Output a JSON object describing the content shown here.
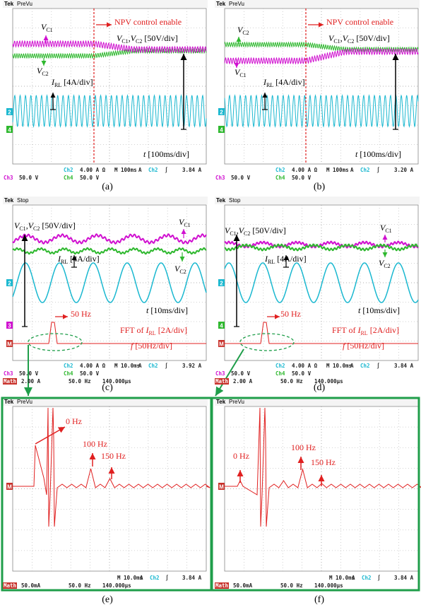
{
  "panels": [
    {
      "caption": "(a)",
      "header": {
        "brand": "Tek",
        "mode": "PreVu"
      },
      "labels": [
        {
          "color": "#e02020",
          "parts": [
            {
              "text": "NPV control enable"
            }
          ]
        },
        {
          "parts": [
            {
              "text": "V",
              "italic": true
            },
            {
              "text": "C1",
              "sub": true
            }
          ]
        },
        {
          "parts": [
            {
              "text": "V",
              "italic": true
            },
            {
              "text": "C2",
              "sub": true
            }
          ]
        },
        {
          "parts": [
            {
              "text": "V",
              "italic": true
            },
            {
              "text": "C1",
              "sub": true
            },
            {
              "text": ","
            },
            {
              "text": "V",
              "italic": true
            },
            {
              "text": "C2",
              "sub": true
            },
            {
              "text": " [50V/div]"
            }
          ]
        },
        {
          "parts": [
            {
              "text": "I",
              "italic": true
            },
            {
              "text": "RL",
              "sub": true
            },
            {
              "text": " [4A/div]"
            }
          ]
        },
        {
          "parts": [
            {
              "text": "t",
              "italic": true
            },
            {
              "text": " [100ms/div]"
            }
          ]
        }
      ],
      "markers": [
        {
          "text": "2",
          "color": "#1ab8d0"
        },
        {
          "text": "4",
          "color": "#2eb82e"
        }
      ],
      "status": [
        [
          {
            "text": "Ch2",
            "color": "#1ab8d0"
          },
          "4.00 A Ω",
          "M 100ms",
          "A",
          {
            "text": "Ch2",
            "color": "#1ab8d0"
          },
          "∫",
          "3.84 A"
        ],
        [
          {
            "text": "Ch3",
            "color": "#d010d0"
          },
          "50.0 V",
          {
            "text": "Ch4",
            "color": "#2eb82e"
          },
          "50.0 V"
        ]
      ]
    },
    {
      "caption": "(b)",
      "header": {
        "brand": "Tek",
        "mode": "PreVu"
      },
      "labels": [
        {
          "color": "#e02020",
          "parts": [
            {
              "text": "NPV control enable"
            }
          ]
        },
        {
          "parts": [
            {
              "text": "V",
              "italic": true
            },
            {
              "text": "C2",
              "sub": true
            }
          ]
        },
        {
          "parts": [
            {
              "text": "V",
              "italic": true
            },
            {
              "text": "C1",
              "sub": true
            }
          ]
        },
        {
          "parts": [
            {
              "text": "V",
              "italic": true
            },
            {
              "text": "C1",
              "sub": true
            },
            {
              "text": ","
            },
            {
              "text": "V",
              "italic": true
            },
            {
              "text": "C2",
              "sub": true
            },
            {
              "text": " [50V/div]"
            }
          ]
        },
        {
          "parts": [
            {
              "text": "I",
              "italic": true
            },
            {
              "text": "RL",
              "sub": true
            },
            {
              "text": " [4A/div]"
            }
          ]
        },
        {
          "parts": [
            {
              "text": "t",
              "italic": true
            },
            {
              "text": " [100ms/div]"
            }
          ]
        }
      ],
      "markers": [
        {
          "text": "2",
          "color": "#1ab8d0"
        },
        {
          "text": "4",
          "color": "#2eb82e"
        }
      ],
      "status": [
        [
          {
            "text": "Ch2",
            "color": "#1ab8d0"
          },
          "4.00 A Ω",
          "M 100ms",
          "A",
          {
            "text": "Ch2",
            "color": "#1ab8d0"
          },
          "∫",
          "3.20 A"
        ],
        [
          {
            "text": "Ch3",
            "color": "#d010d0"
          },
          "50.0 V",
          {
            "text": "Ch4",
            "color": "#2eb82e"
          },
          "50.0 V"
        ]
      ]
    },
    {
      "caption": "(c)",
      "header": {
        "brand": "Tek",
        "mode": "Stop"
      },
      "labels": [
        {
          "parts": [
            {
              "text": "V",
              "italic": true
            },
            {
              "text": "C1",
              "sub": true
            },
            {
              "text": ","
            },
            {
              "text": "V",
              "italic": true
            },
            {
              "text": "C2",
              "sub": true
            },
            {
              "text": " [50V/div]"
            }
          ]
        },
        {
          "parts": [
            {
              "text": "V",
              "italic": true
            },
            {
              "text": "C1",
              "sub": true
            }
          ]
        },
        {
          "parts": [
            {
              "text": "I",
              "italic": true
            },
            {
              "text": "RL",
              "sub": true
            },
            {
              "text": " [4A/div]"
            }
          ]
        },
        {
          "parts": [
            {
              "text": "V",
              "italic": true
            },
            {
              "text": "C2",
              "sub": true
            }
          ]
        },
        {
          "parts": [
            {
              "text": "t",
              "italic": true
            },
            {
              "text": " [10ms/div]"
            }
          ]
        },
        {
          "color": "#e02020",
          "parts": [
            {
              "text": "50 Hz"
            }
          ]
        },
        {
          "color": "#e02020",
          "parts": [
            {
              "text": "FFT of "
            },
            {
              "text": "I",
              "italic": true
            },
            {
              "text": "RL",
              "sub": true
            },
            {
              "text": " [2A/div]"
            }
          ]
        },
        {
          "color": "#e02020",
          "parts": [
            {
              "text": "f",
              "italic": true
            },
            {
              "text": " [50Hz/div]"
            }
          ]
        }
      ],
      "markers": [
        {
          "text": "2",
          "color": "#1ab8d0"
        },
        {
          "text": "3",
          "color": "#d010d0"
        },
        {
          "text": "M",
          "color": "#c8302a"
        }
      ],
      "status": [
        [
          {
            "text": "Ch2",
            "color": "#1ab8d0"
          },
          "4.00 A Ω",
          "M 10.0ms",
          "A",
          {
            "text": "Ch2",
            "color": "#1ab8d0"
          },
          "∫",
          "3.92 A"
        ],
        [
          {
            "text": "Ch3",
            "color": "#d010d0"
          },
          "50.0 V",
          {
            "text": "Ch4",
            "color": "#2eb82e"
          },
          "50.0 V"
        ],
        [
          {
            "text": "Math",
            "color": "#ffffff",
            "background": "#c8302a"
          },
          "2.00 A",
          "50.0 Hz",
          "140.000µs"
        ]
      ]
    },
    {
      "caption": "(d)",
      "header": {
        "brand": "Tek",
        "mode": "Stop"
      },
      "labels": [
        {
          "parts": [
            {
              "text": "V",
              "italic": true
            },
            {
              "text": "C1",
              "sub": true
            },
            {
              "text": ","
            },
            {
              "text": "V",
              "italic": true
            },
            {
              "text": "C2",
              "sub": true
            },
            {
              "text": " [50V/div]"
            }
          ]
        },
        {
          "parts": [
            {
              "text": "V",
              "italic": true
            },
            {
              "text": "C1",
              "sub": true
            }
          ]
        },
        {
          "parts": [
            {
              "text": "I",
              "italic": true
            },
            {
              "text": "RL",
              "sub": true
            },
            {
              "text": " [4A/div]"
            }
          ]
        },
        {
          "parts": [
            {
              "text": "V",
              "italic": true
            },
            {
              "text": "C2",
              "sub": true
            }
          ]
        },
        {
          "parts": [
            {
              "text": "t",
              "italic": true
            },
            {
              "text": " [10ms/div]"
            }
          ]
        },
        {
          "color": "#e02020",
          "parts": [
            {
              "text": "50 Hz"
            }
          ]
        },
        {
          "color": "#e02020",
          "parts": [
            {
              "text": "FFT of "
            },
            {
              "text": "I",
              "italic": true
            },
            {
              "text": "RL",
              "sub": true
            },
            {
              "text": " [2A/div]"
            }
          ]
        },
        {
          "color": "#e02020",
          "parts": [
            {
              "text": "f",
              "italic": true
            },
            {
              "text": " [50Hz/div]"
            }
          ]
        }
      ],
      "markers": [
        {
          "text": "2",
          "color": "#1ab8d0"
        },
        {
          "text": "4",
          "color": "#2eb82e"
        },
        {
          "text": "M",
          "color": "#c8302a"
        }
      ],
      "status": [
        [
          {
            "text": "Ch2",
            "color": "#1ab8d0"
          },
          "4.00 A Ω",
          "M 10.0ms",
          "A",
          {
            "text": "Ch2",
            "color": "#1ab8d0"
          },
          "∫",
          "3.84 A"
        ],
        [
          {
            "text": "Ch3",
            "color": "#d010d0"
          },
          "50.0 V",
          {
            "text": "Ch4",
            "color": "#2eb82e"
          },
          "50.0 V"
        ],
        [
          {
            "text": "Math",
            "color": "#ffffff",
            "background": "#c8302a"
          },
          "2.00 A",
          "50.0 Hz",
          "140.000µs"
        ]
      ]
    },
    {
      "caption": "(e)",
      "header": {
        "brand": "Tek",
        "mode": "PreVu"
      },
      "labels": [
        {
          "color": "#e02020",
          "parts": [
            {
              "text": "0 Hz"
            }
          ]
        },
        {
          "color": "#e02020",
          "parts": [
            {
              "text": "100 Hz"
            }
          ]
        },
        {
          "color": "#e02020",
          "parts": [
            {
              "text": "150 Hz"
            }
          ]
        }
      ],
      "markers": [
        {
          "text": "M",
          "color": "#c8302a"
        }
      ],
      "status": [
        [
          "M 10.0ms",
          "A",
          {
            "text": "Ch2",
            "color": "#1ab8d0"
          },
          "∫",
          "3.84 A"
        ],
        [
          {
            "text": "Math",
            "color": "#ffffff",
            "background": "#c8302a"
          },
          "50.0mA",
          "50.0 Hz",
          "140.000µs"
        ]
      ]
    },
    {
      "caption": "(f)",
      "header": {
        "brand": "Tek",
        "mode": "PreVu"
      },
      "labels": [
        {
          "color": "#e02020",
          "parts": [
            {
              "text": "0 Hz"
            }
          ]
        },
        {
          "color": "#e02020",
          "parts": [
            {
              "text": "100 Hz"
            }
          ]
        },
        {
          "color": "#e02020",
          "parts": [
            {
              "text": "150 Hz"
            }
          ]
        }
      ],
      "markers": [
        {
          "text": "M",
          "color": "#c8302a"
        }
      ],
      "status": [
        [
          "M 10.0ms",
          "A",
          {
            "text": "Ch2",
            "color": "#1ab8d0"
          },
          "∫",
          "3.84 A"
        ],
        [
          {
            "text": "Math",
            "color": "#ffffff",
            "background": "#c8302a"
          },
          "50.0mA",
          "50.0 Hz",
          "140.000µs"
        ]
      ]
    }
  ]
}
